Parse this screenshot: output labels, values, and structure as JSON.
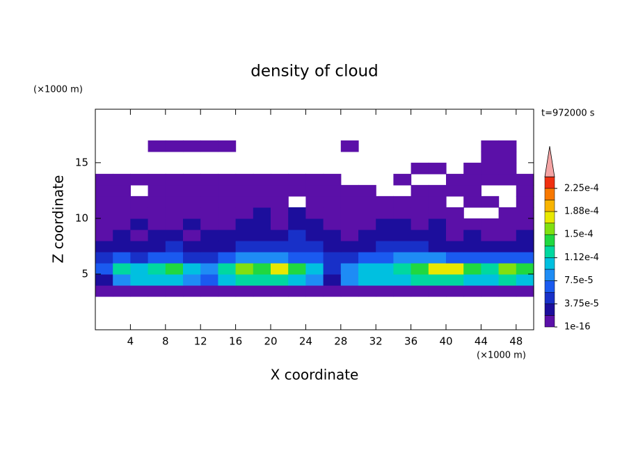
{
  "chart_data": {
    "type": "contour",
    "title": "density of cloud",
    "x_label": "X coordinate",
    "y_label": "Z coordinate",
    "x_unit": "(×1000 m)",
    "y_unit": "(×1000 m)",
    "annotation": "t=972000 s",
    "xlim": [
      0,
      50
    ],
    "ylim": [
      0,
      19.8
    ],
    "xticks": [
      4,
      8,
      12,
      16,
      20,
      24,
      28,
      32,
      36,
      40,
      44,
      48
    ],
    "yticks": [
      5,
      10,
      15
    ],
    "levels": [
      1e-16,
      1.875e-05,
      3.75e-05,
      5.625e-05,
      7.5e-05,
      9.375e-05,
      0.0001125,
      0.00013125,
      0.00015,
      0.00016875,
      0.0001875,
      0.00020625,
      0.000225,
      0.00024375
    ],
    "colors": [
      "#5b10a8",
      "#1c0e9c",
      "#1830c8",
      "#1a5af0",
      "#1e8cf5",
      "#00c0e0",
      "#00d8a0",
      "#20d840",
      "#80e010",
      "#e8e800",
      "#f8b400",
      "#f87800",
      "#f03010"
    ],
    "extend_color": "#f4a4a4",
    "colorbar_ticks": [
      1e-16,
      {
        "value": 3.75e-05,
        "label": "3.75e-5"
      },
      {
        "value": 7.5e-05,
        "label": "7.5e-5"
      },
      {
        "value": 0.0001125,
        "label": "1.12e-4"
      },
      {
        "value": 0.00015,
        "label": "1.5e-4"
      },
      {
        "value": 0.0001875,
        "label": "1.88e-4"
      },
      {
        "value": 0.000225,
        "label": "2.25e-4"
      }
    ],
    "x": [
      1,
      3,
      5,
      7,
      9,
      11,
      13,
      15,
      17,
      19,
      21,
      23,
      25,
      27,
      29,
      31,
      33,
      35,
      37,
      39,
      41,
      43,
      45,
      47,
      49
    ],
    "z": [
      3.5,
      4.5,
      5.5,
      6.5,
      7.5,
      8.5,
      9.5,
      10.5,
      11.5,
      12.5,
      13.5,
      14.5,
      15.5,
      16.5
    ],
    "values": [
      [
        1e-16,
        1e-16,
        1e-16,
        1e-16,
        1e-16,
        1e-16,
        1e-16,
        1e-16,
        1e-16,
        1e-16,
        1e-16,
        1e-16,
        1e-16,
        1e-16,
        1e-16,
        1e-16,
        1e-16,
        1e-16,
        1e-16,
        1e-16,
        1e-16,
        1e-16,
        1e-16,
        1e-16,
        1e-16
      ],
      [
        2e-05,
        8e-05,
        0.0001,
        0.0001,
        0.0001,
        8e-05,
        6e-05,
        0.0001,
        0.00012,
        0.00012,
        0.00012,
        0.0001,
        8e-05,
        2e-05,
        8e-05,
        0.0001,
        0.0001,
        0.0001,
        0.00012,
        0.00012,
        0.00012,
        0.0001,
        0.0001,
        0.00012,
        0.0001
      ],
      [
        6e-05,
        0.00012,
        0.0001,
        0.00012,
        0.00014,
        0.0001,
        8e-05,
        0.00012,
        0.00016,
        0.00014,
        0.00018,
        0.00014,
        0.0001,
        4e-05,
        8e-05,
        0.0001,
        0.0001,
        0.00012,
        0.00014,
        0.00018,
        0.00018,
        0.00014,
        0.00012,
        0.00016,
        0.00014
      ],
      [
        4e-05,
        6e-05,
        4e-05,
        6e-05,
        6e-05,
        4e-05,
        4e-05,
        6e-05,
        8e-05,
        8e-05,
        8e-05,
        6e-05,
        6e-05,
        4e-05,
        4e-05,
        6e-05,
        6e-05,
        8e-05,
        8e-05,
        8e-05,
        6e-05,
        6e-05,
        6e-05,
        6e-05,
        6e-05
      ],
      [
        2e-05,
        2e-05,
        2e-05,
        2e-05,
        4e-05,
        2e-05,
        2e-05,
        2e-05,
        4e-05,
        4e-05,
        4e-05,
        4e-05,
        4e-05,
        2e-05,
        2e-05,
        2e-05,
        4e-05,
        4e-05,
        4e-05,
        2e-05,
        2e-05,
        2e-05,
        2e-05,
        2e-05,
        2e-05
      ],
      [
        1e-16,
        2e-05,
        1e-16,
        2e-05,
        2e-05,
        1e-16,
        2e-05,
        2e-05,
        2e-05,
        2e-05,
        2e-05,
        4e-05,
        2e-05,
        2e-05,
        1e-16,
        2e-05,
        2e-05,
        2e-05,
        2e-05,
        2e-05,
        1e-16,
        2e-05,
        1e-16,
        1e-16,
        2e-05
      ],
      [
        1e-16,
        1e-16,
        2e-05,
        1e-16,
        1e-16,
        2e-05,
        1e-16,
        1e-16,
        2e-05,
        2e-05,
        1e-16,
        2e-05,
        2e-05,
        1e-16,
        1e-16,
        1e-16,
        2e-05,
        2e-05,
        1e-16,
        2e-05,
        1e-16,
        1e-16,
        1e-16,
        1e-16,
        1e-16
      ],
      [
        1e-16,
        1e-16,
        1e-16,
        1e-16,
        1e-16,
        1e-16,
        1e-16,
        1e-16,
        1e-16,
        2e-05,
        1e-16,
        2e-05,
        1e-16,
        1e-16,
        1e-16,
        1e-16,
        1e-16,
        1e-16,
        1e-16,
        1e-16,
        1e-16,
        null,
        null,
        1e-16,
        1e-16
      ],
      [
        1e-16,
        1e-16,
        1e-16,
        1e-16,
        1e-16,
        1e-16,
        1e-16,
        1e-16,
        1e-16,
        1e-16,
        1e-16,
        null,
        1e-16,
        1e-16,
        1e-16,
        1e-16,
        1e-16,
        1e-16,
        1e-16,
        1e-16,
        null,
        1e-16,
        1e-16,
        null,
        1e-16
      ],
      [
        1e-16,
        1e-16,
        null,
        1e-16,
        1e-16,
        1e-16,
        1e-16,
        1e-16,
        1e-16,
        1e-16,
        1e-16,
        1e-16,
        1e-16,
        1e-16,
        1e-16,
        1e-16,
        null,
        null,
        1e-16,
        1e-16,
        1e-16,
        1e-16,
        null,
        null,
        1e-16
      ],
      [
        1e-16,
        1e-16,
        1e-16,
        1e-16,
        1e-16,
        1e-16,
        1e-16,
        1e-16,
        1e-16,
        1e-16,
        1e-16,
        1e-16,
        1e-16,
        1e-16,
        null,
        null,
        null,
        1e-16,
        null,
        null,
        1e-16,
        1e-16,
        1e-16,
        1e-16,
        1e-16
      ],
      [
        null,
        null,
        null,
        null,
        null,
        null,
        null,
        null,
        null,
        null,
        null,
        null,
        null,
        null,
        null,
        null,
        null,
        null,
        1e-16,
        1e-16,
        null,
        1e-16,
        1e-16,
        1e-16,
        null
      ],
      [
        null,
        null,
        null,
        null,
        null,
        null,
        null,
        null,
        null,
        null,
        null,
        null,
        null,
        null,
        null,
        null,
        null,
        null,
        null,
        null,
        null,
        null,
        1e-16,
        1e-16,
        null
      ],
      [
        null,
        null,
        null,
        1e-16,
        1e-16,
        1e-16,
        1e-16,
        1e-16,
        null,
        null,
        null,
        null,
        null,
        null,
        1e-16,
        null,
        null,
        null,
        null,
        null,
        null,
        null,
        1e-16,
        1e-16,
        null
      ]
    ]
  }
}
